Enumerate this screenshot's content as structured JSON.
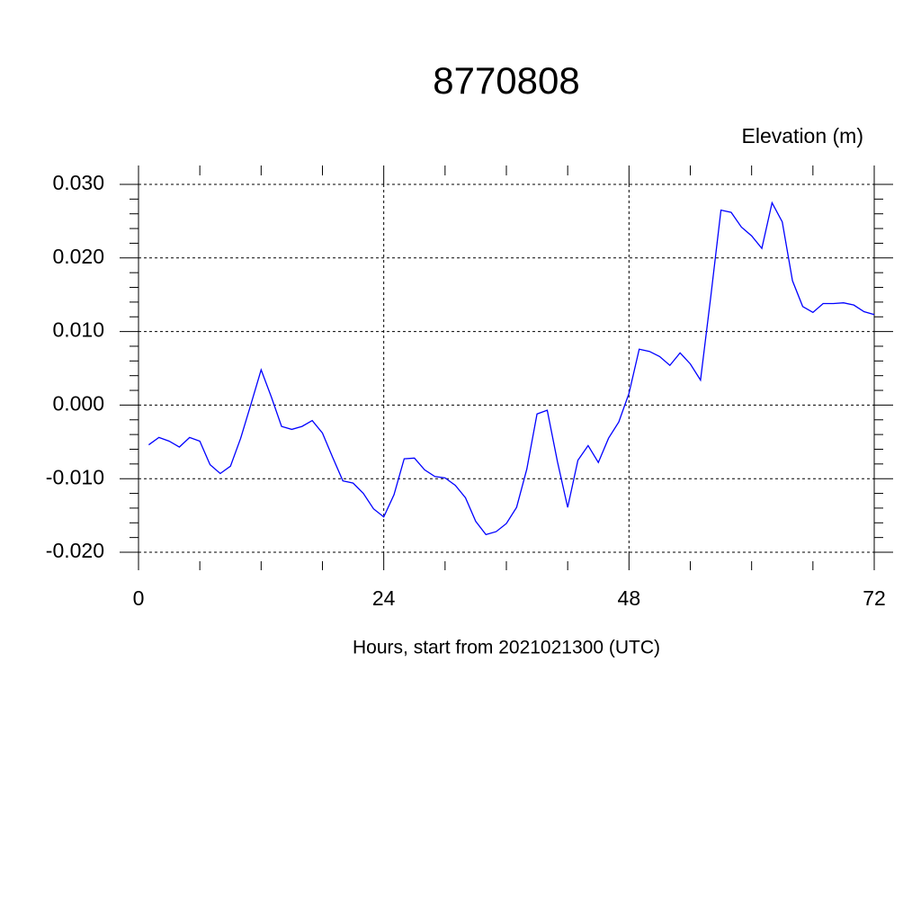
{
  "chart_data": {
    "type": "line",
    "title": "8770808",
    "y_label": "Elevation (m)",
    "x_label": "Hours, start from 2021021300 (UTC)",
    "x": [
      1,
      2,
      3,
      4,
      5,
      6,
      7,
      8,
      9,
      10,
      11,
      12,
      13,
      14,
      15,
      16,
      17,
      18,
      19,
      20,
      21,
      22,
      23,
      24,
      25,
      26,
      27,
      28,
      29,
      30,
      31,
      32,
      33,
      34,
      35,
      36,
      37,
      38,
      39,
      40,
      41,
      42,
      43,
      44,
      45,
      46,
      47,
      48,
      49,
      50,
      51,
      52,
      53,
      54,
      55,
      56,
      57,
      58,
      59,
      60,
      61,
      62,
      63,
      64,
      65,
      66,
      67,
      68,
      69,
      70,
      71,
      72
    ],
    "series": [
      {
        "color": "#0000ff",
        "values": [
          -0.0054,
          -0.0044,
          -0.0049,
          -0.0057,
          -0.0044,
          -0.0049,
          -0.0081,
          -0.0093,
          -0.0083,
          -0.0045,
          0.0001,
          0.0048,
          0.0011,
          -0.0029,
          -0.0033,
          -0.0029,
          -0.0021,
          -0.0038,
          -0.0071,
          -0.0103,
          -0.0106,
          -0.012,
          -0.0141,
          -0.0152,
          -0.0122,
          -0.0073,
          -0.0072,
          -0.0088,
          -0.0097,
          -0.0099,
          -0.0109,
          -0.0126,
          -0.0158,
          -0.0176,
          -0.0172,
          -0.0161,
          -0.0139,
          -0.0087,
          -0.0012,
          -0.0007,
          -0.0077,
          -0.0139,
          -0.0075,
          -0.0055,
          -0.0078,
          -0.0045,
          -0.0023,
          0.0016,
          0.0076,
          0.0073,
          0.0066,
          0.0054,
          0.0071,
          0.0056,
          0.0034,
          0.0147,
          0.0265,
          0.0262,
          0.0242,
          0.023,
          0.0213,
          0.0275,
          0.0249,
          0.0169,
          0.0134,
          0.0126,
          0.0138,
          0.0138,
          0.0139,
          0.0136,
          0.0127,
          0.0123
        ]
      }
    ],
    "xlim": [
      0,
      72
    ],
    "xticks": [
      0,
      24,
      48,
      72
    ],
    "ylim": [
      -0.02,
      0.03
    ],
    "yticks": [
      {
        "value": -0.02,
        "label": "-0.020"
      },
      {
        "value": -0.01,
        "label": "-0.010"
      },
      {
        "value": 0,
        "label": "0.000"
      },
      {
        "value": 0.01,
        "label": "0.010"
      },
      {
        "value": 0.02,
        "label": "0.020"
      },
      {
        "value": 0.03,
        "label": "0.030"
      }
    ],
    "grid": true
  }
}
